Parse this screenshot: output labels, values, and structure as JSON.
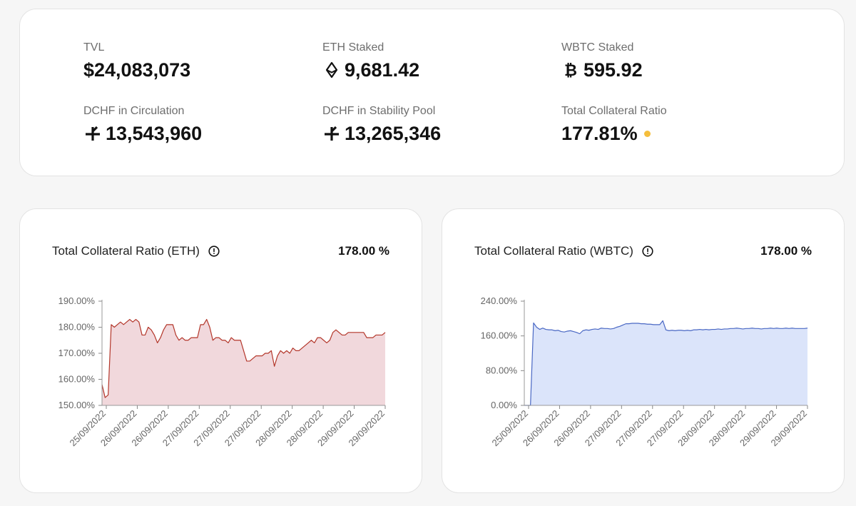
{
  "stats": {
    "tvl": {
      "label": "TVL",
      "value": "$24,083,073"
    },
    "eth_staked": {
      "label": "ETH Staked",
      "value": "9,681.42",
      "icon": "ethereum-icon"
    },
    "wbtc_staked": {
      "label": "WBTC Staked",
      "value": "595.92",
      "icon": "bitcoin-icon"
    },
    "dchf_circulation": {
      "label": "DCHF in Circulation",
      "value": "13,543,960",
      "icon": "dchf-icon"
    },
    "dchf_stability_pool": {
      "label": "DCHF in Stability Pool",
      "value": "13,265,346",
      "icon": "dchf-icon"
    },
    "total_collateral_ratio": {
      "label": "Total Collateral Ratio",
      "value": "177.81%",
      "status_color": "#f5be3c"
    }
  },
  "eth_chart": {
    "title": "Total Collateral Ratio (ETH)",
    "value": "178.00 %",
    "info_icon": "info-icon",
    "line_color": "#b3362a",
    "fill_color": "#f1d8dc"
  },
  "wbtc_chart": {
    "title": "Total Collateral Ratio (WBTC)",
    "value": "178.00 %",
    "info_icon": "info-icon",
    "line_color": "#4a68c4",
    "fill_color": "#dbe4fa"
  },
  "chart_data": [
    {
      "type": "area",
      "title": "Total Collateral Ratio (ETH)",
      "xlabel": "",
      "ylabel": "",
      "ylim": [
        150,
        190
      ],
      "yticks": [
        190,
        180,
        170,
        160,
        150
      ],
      "ytick_labels": [
        "190.00%",
        "180.00%",
        "170.00%",
        "160.00%",
        "150.00%"
      ],
      "xtick_labels": [
        "25/09/2022",
        "26/09/2022",
        "26/09/2022",
        "27/09/2022",
        "27/09/2022",
        "27/09/2022",
        "28/09/2022",
        "28/09/2022",
        "29/09/2022",
        "29/09/2022"
      ],
      "values": [
        158,
        153,
        154,
        181,
        180,
        181,
        182,
        181,
        182,
        183,
        182,
        183,
        182,
        177,
        177,
        180,
        179,
        177,
        174,
        176,
        179,
        181,
        181,
        181,
        177,
        175,
        176,
        175,
        175,
        176,
        176,
        176,
        181,
        181,
        183,
        180,
        175,
        176,
        176,
        175,
        175,
        174,
        176,
        175,
        175,
        175,
        171,
        167,
        167,
        168,
        169,
        169,
        169,
        170,
        170,
        171,
        165,
        169,
        171,
        170,
        171,
        170,
        172,
        171,
        171,
        172,
        173,
        174,
        175,
        174,
        176,
        176,
        175,
        174,
        175,
        178,
        179,
        178,
        177,
        177,
        178,
        178,
        178,
        178,
        178,
        178,
        176,
        176,
        176,
        177,
        177,
        177,
        178
      ]
    },
    {
      "type": "area",
      "title": "Total Collateral Ratio (WBTC)",
      "xlabel": "",
      "ylabel": "",
      "ylim": [
        0,
        240
      ],
      "yticks": [
        240,
        160,
        80,
        0
      ],
      "ytick_labels": [
        "240.00%",
        "160.00%",
        "80.00%",
        "0.00%"
      ],
      "xtick_labels": [
        "25/09/2022",
        "26/09/2022",
        "26/09/2022",
        "27/09/2022",
        "27/09/2022",
        "27/09/2022",
        "28/09/2022",
        "28/09/2022",
        "29/09/2022",
        "29/09/2022"
      ],
      "values": [
        0,
        0,
        0,
        190,
        180,
        175,
        178,
        175,
        174,
        174,
        172,
        173,
        170,
        169,
        171,
        172,
        170,
        168,
        165,
        172,
        174,
        173,
        175,
        176,
        175,
        178,
        177,
        177,
        176,
        177,
        180,
        182,
        185,
        188,
        188,
        189,
        189,
        189,
        188,
        188,
        187,
        187,
        186,
        186,
        186,
        195,
        174,
        172,
        173,
        172,
        173,
        173,
        172,
        173,
        172,
        174,
        174,
        175,
        174,
        175,
        174,
        175,
        175,
        176,
        175,
        176,
        176,
        177,
        177,
        178,
        177,
        176,
        177,
        177,
        178,
        177,
        177,
        176,
        177,
        177,
        178,
        177,
        178,
        177,
        177,
        178,
        177,
        178,
        177,
        177,
        177,
        177,
        178
      ]
    }
  ]
}
